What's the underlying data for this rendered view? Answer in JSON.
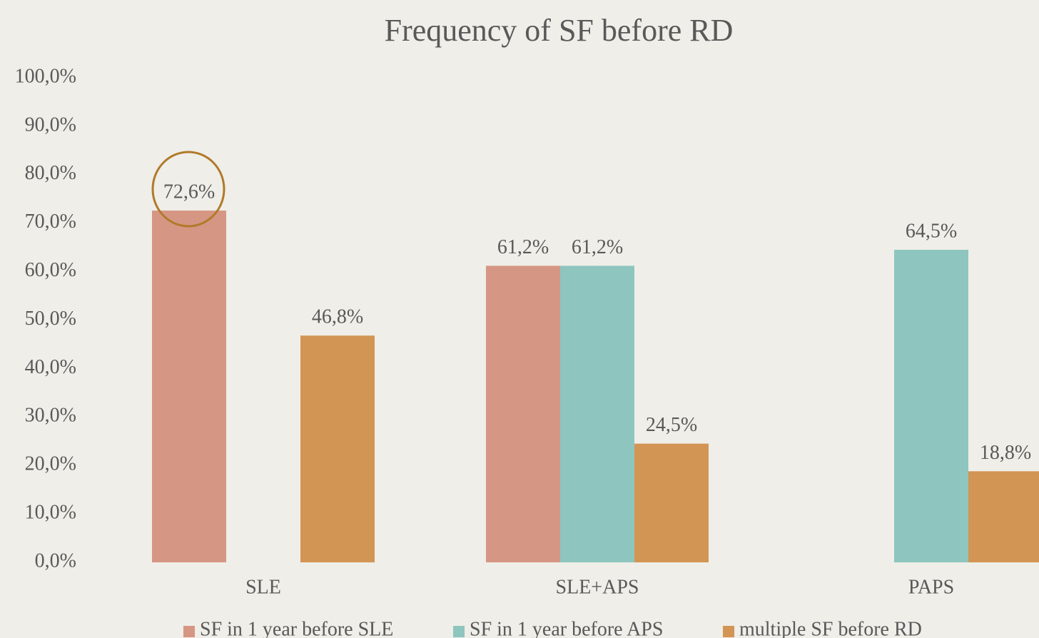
{
  "chart_data": {
    "type": "bar",
    "title": "Frequency of  SF before RD",
    "categories": [
      "SLE",
      "SLE+APS",
      "PAPS"
    ],
    "series": [
      {
        "name": "SF in 1 year before SLE",
        "color": "#d69684",
        "values": [
          72.6,
          61.2,
          null
        ],
        "value_labels": [
          "72,6%",
          "61,2%",
          null
        ]
      },
      {
        "name": "SF in 1 year before APS",
        "color": "#8ec5bf",
        "values": [
          null,
          61.2,
          64.5
        ],
        "value_labels": [
          null,
          "61,2%",
          "64,5%"
        ]
      },
      {
        "name": "multiple SF before RD",
        "color": "#d29554",
        "values": [
          46.8,
          24.5,
          18.8
        ],
        "value_labels": [
          "46,8%",
          "24,5%",
          "18,8%"
        ]
      }
    ],
    "ylim": [
      0,
      100
    ],
    "yticks": [
      {
        "value": 0,
        "label": "0,0%"
      },
      {
        "value": 10,
        "label": "10,0%"
      },
      {
        "value": 20,
        "label": "20,0%"
      },
      {
        "value": 30,
        "label": "30,0%"
      },
      {
        "value": 40,
        "label": "40,0%"
      },
      {
        "value": 50,
        "label": "50,0%"
      },
      {
        "value": 60,
        "label": "60,0%"
      },
      {
        "value": 70,
        "label": "70,0%"
      },
      {
        "value": 80,
        "label": "80,0%"
      },
      {
        "value": 90,
        "label": "90,0%"
      },
      {
        "value": 100,
        "label": "100,0%"
      }
    ],
    "grid": false,
    "legend": "bottom"
  }
}
